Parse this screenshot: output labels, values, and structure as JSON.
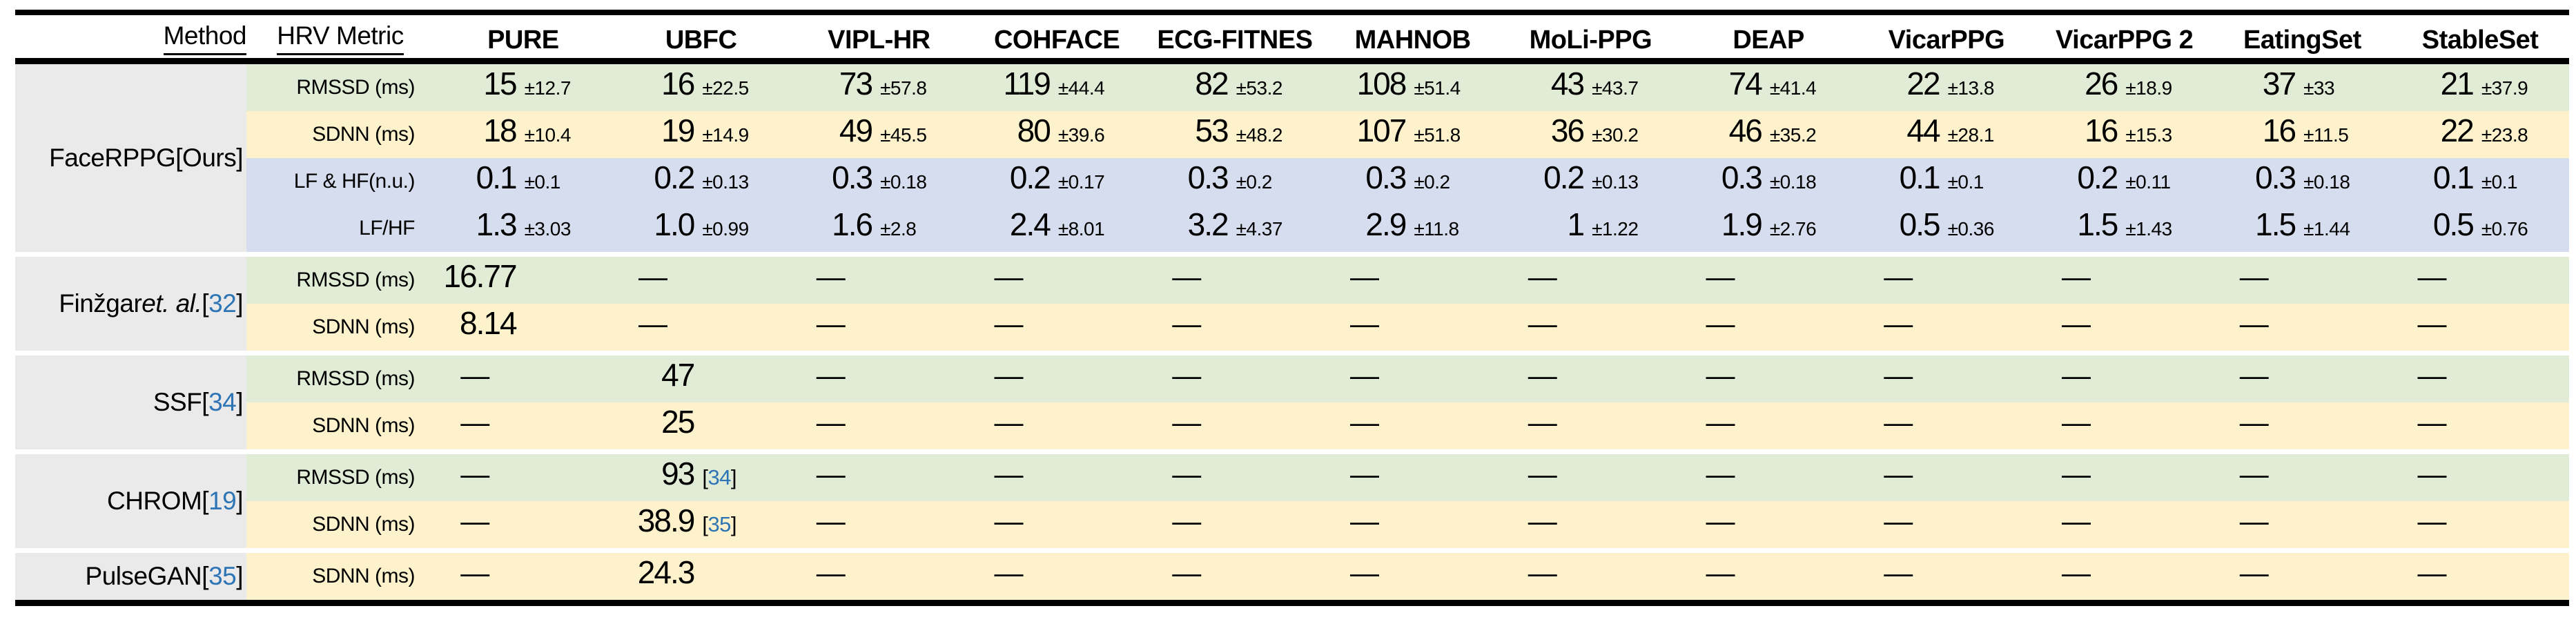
{
  "header": {
    "method_label": "Method",
    "metric_label": "HRV Metric",
    "datasets": [
      "PURE",
      "UBFC",
      "VIPL-HR",
      "COHFACE",
      "ECG-FITNES",
      "MAHNOB",
      "MoLi-PPG",
      "DEAP",
      "VicarPPG",
      "VicarPPG 2",
      "EatingSet",
      "StableSet"
    ]
  },
  "colors": {
    "row_green": "#e1ecd7",
    "row_yellow": "#fdf2cc",
    "row_blue": "#d6ddee",
    "method_gray": "#eaeaea",
    "citation_blue": "#2e75b6",
    "rule_black": "#000000"
  },
  "dash_char": "—",
  "groups": [
    {
      "method_parts": [
        {
          "t": "FaceRPPG[Ours]",
          "s": "n"
        }
      ],
      "rows": [
        {
          "metric": "RMSSD (ms)",
          "tone": "green",
          "cells": [
            {
              "v": "15",
              "pm": "±12.7"
            },
            {
              "v": "16",
              "pm": "±22.5"
            },
            {
              "v": "73",
              "pm": "±57.8"
            },
            {
              "v": "119",
              "pm": "±44.4"
            },
            {
              "v": "82",
              "pm": "±53.2"
            },
            {
              "v": "108",
              "pm": "±51.4"
            },
            {
              "v": "43",
              "pm": "±43.7"
            },
            {
              "v": "74",
              "pm": "±41.4"
            },
            {
              "v": "22",
              "pm": "±13.8"
            },
            {
              "v": "26",
              "pm": "±18.9"
            },
            {
              "v": "37",
              "pm": "±33"
            },
            {
              "v": "21",
              "pm": "±37.9"
            }
          ]
        },
        {
          "metric": "SDNN (ms)",
          "tone": "yellow",
          "cells": [
            {
              "v": "18",
              "pm": "±10.4"
            },
            {
              "v": "19",
              "pm": "±14.9"
            },
            {
              "v": "49",
              "pm": "±45.5"
            },
            {
              "v": "80",
              "pm": "±39.6"
            },
            {
              "v": "53",
              "pm": "±48.2"
            },
            {
              "v": "107",
              "pm": "±51.8"
            },
            {
              "v": "36",
              "pm": "±30.2"
            },
            {
              "v": "46",
              "pm": "±35.2"
            },
            {
              "v": "44",
              "pm": "±28.1"
            },
            {
              "v": "16",
              "pm": "±15.3"
            },
            {
              "v": "16",
              "pm": "±11.5"
            },
            {
              "v": "22",
              "pm": "±23.8"
            }
          ]
        },
        {
          "metric": "LF & HF(n.u.)",
          "tone": "blue",
          "cells": [
            {
              "v": "0.1",
              "pm": "±0.1"
            },
            {
              "v": "0.2",
              "pm": "±0.13"
            },
            {
              "v": "0.3",
              "pm": "±0.18"
            },
            {
              "v": "0.2",
              "pm": "±0.17"
            },
            {
              "v": "0.3",
              "pm": "±0.2"
            },
            {
              "v": "0.3",
              "pm": "±0.2"
            },
            {
              "v": "0.2",
              "pm": "±0.13"
            },
            {
              "v": "0.3",
              "pm": "±0.18"
            },
            {
              "v": "0.1",
              "pm": "±0.1"
            },
            {
              "v": "0.2",
              "pm": "±0.11"
            },
            {
              "v": "0.3",
              "pm": "±0.18"
            },
            {
              "v": "0.1",
              "pm": "±0.1"
            }
          ]
        },
        {
          "metric": "LF/HF",
          "tone": "blue",
          "cells": [
            {
              "v": "1.3",
              "pm": "±3.03"
            },
            {
              "v": "1.0",
              "pm": "±0.99"
            },
            {
              "v": "1.6",
              "pm": "±2.8"
            },
            {
              "v": "2.4",
              "pm": "±8.01"
            },
            {
              "v": "3.2",
              "pm": "±4.37"
            },
            {
              "v": "2.9",
              "pm": "±11.8"
            },
            {
              "v": "1",
              "pm": "±1.22"
            },
            {
              "v": "1.9",
              "pm": "±2.76"
            },
            {
              "v": "0.5",
              "pm": "±0.36"
            },
            {
              "v": "1.5",
              "pm": "±1.43"
            },
            {
              "v": "1.5",
              "pm": "±1.44"
            },
            {
              "v": "0.5",
              "pm": "±0.76"
            }
          ]
        }
      ]
    },
    {
      "method_parts": [
        {
          "t": "Finžgar ",
          "s": "n"
        },
        {
          "t": "et. al.",
          "s": "i"
        },
        {
          "t": "[",
          "s": "n"
        },
        {
          "t": "32",
          "s": "c"
        },
        {
          "t": "]",
          "s": "n"
        }
      ],
      "rows": [
        {
          "metric": "RMSSD (ms)",
          "tone": "green",
          "cells": [
            {
              "v": "16.77"
            },
            {
              "dash": true
            },
            {
              "dash": true
            },
            {
              "dash": true
            },
            {
              "dash": true
            },
            {
              "dash": true
            },
            {
              "dash": true
            },
            {
              "dash": true
            },
            {
              "dash": true
            },
            {
              "dash": true
            },
            {
              "dash": true
            },
            {
              "dash": true
            }
          ]
        },
        {
          "metric": "SDNN (ms)",
          "tone": "yellow",
          "cells": [
            {
              "v": "8.14"
            },
            {
              "dash": true
            },
            {
              "dash": true
            },
            {
              "dash": true
            },
            {
              "dash": true
            },
            {
              "dash": true
            },
            {
              "dash": true
            },
            {
              "dash": true
            },
            {
              "dash": true
            },
            {
              "dash": true
            },
            {
              "dash": true
            },
            {
              "dash": true
            }
          ]
        }
      ]
    },
    {
      "method_parts": [
        {
          "t": "SSF ",
          "s": "n"
        },
        {
          "t": "[",
          "s": "n"
        },
        {
          "t": "34",
          "s": "c"
        },
        {
          "t": "]",
          "s": "n"
        }
      ],
      "rows": [
        {
          "metric": "RMSSD (ms)",
          "tone": "green",
          "cells": [
            {
              "dash": true
            },
            {
              "v": "47"
            },
            {
              "dash": true
            },
            {
              "dash": true
            },
            {
              "dash": true
            },
            {
              "dash": true
            },
            {
              "dash": true
            },
            {
              "dash": true
            },
            {
              "dash": true
            },
            {
              "dash": true
            },
            {
              "dash": true
            },
            {
              "dash": true
            }
          ]
        },
        {
          "metric": "SDNN (ms)",
          "tone": "yellow",
          "cells": [
            {
              "dash": true
            },
            {
              "v": "25"
            },
            {
              "dash": true
            },
            {
              "dash": true
            },
            {
              "dash": true
            },
            {
              "dash": true
            },
            {
              "dash": true
            },
            {
              "dash": true
            },
            {
              "dash": true
            },
            {
              "dash": true
            },
            {
              "dash": true
            },
            {
              "dash": true
            }
          ]
        }
      ]
    },
    {
      "method_parts": [
        {
          "t": "CHROM",
          "s": "n"
        },
        {
          "t": "[",
          "s": "n"
        },
        {
          "t": "19",
          "s": "c"
        },
        {
          "t": "]",
          "s": "n"
        }
      ],
      "rows": [
        {
          "metric": "RMSSD (ms)",
          "tone": "green",
          "cells": [
            {
              "dash": true
            },
            {
              "v": "93",
              "cite": "34",
              "cite_space": true
            },
            {
              "dash": true
            },
            {
              "dash": true
            },
            {
              "dash": true
            },
            {
              "dash": true
            },
            {
              "dash": true
            },
            {
              "dash": true
            },
            {
              "dash": true
            },
            {
              "dash": true
            },
            {
              "dash": true
            },
            {
              "dash": true
            }
          ]
        },
        {
          "metric": "SDNN (ms)",
          "tone": "yellow",
          "cells": [
            {
              "dash": true
            },
            {
              "v": "38.9",
              "cite": "35",
              "cite_space": false
            },
            {
              "dash": true
            },
            {
              "dash": true
            },
            {
              "dash": true
            },
            {
              "dash": true
            },
            {
              "dash": true
            },
            {
              "dash": true
            },
            {
              "dash": true
            },
            {
              "dash": true
            },
            {
              "dash": true
            },
            {
              "dash": true
            }
          ]
        }
      ]
    },
    {
      "method_parts": [
        {
          "t": "PulseGAN ",
          "s": "n"
        },
        {
          "t": "[",
          "s": "n"
        },
        {
          "t": "35",
          "s": "c"
        },
        {
          "t": "]",
          "s": "n"
        }
      ],
      "rows": [
        {
          "metric": "SDNN (ms)",
          "tone": "yellow",
          "cells": [
            {
              "dash": true
            },
            {
              "v": "24.3"
            },
            {
              "dash": true
            },
            {
              "dash": true
            },
            {
              "dash": true
            },
            {
              "dash": true
            },
            {
              "dash": true
            },
            {
              "dash": true
            },
            {
              "dash": true
            },
            {
              "dash": true
            },
            {
              "dash": true
            },
            {
              "dash": true
            }
          ]
        }
      ]
    }
  ]
}
